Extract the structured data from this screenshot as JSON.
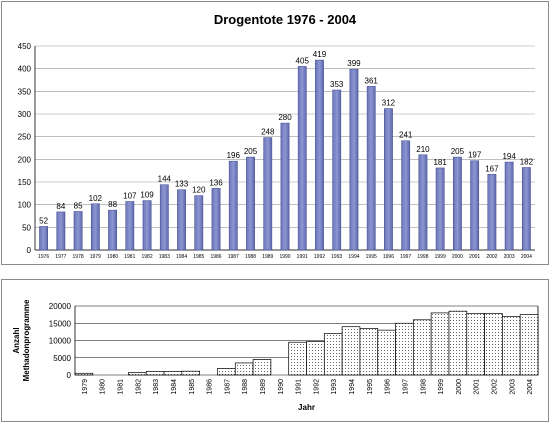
{
  "chart_data": [
    {
      "type": "bar",
      "title": "Drogentote 1976 - 2004",
      "xlabel": "",
      "ylabel": "",
      "ylim": [
        0,
        450
      ],
      "yticks": [
        0,
        50,
        100,
        150,
        200,
        250,
        300,
        350,
        400,
        450
      ],
      "grid": true,
      "bar_color": "#8c96d2",
      "categories": [
        "1976",
        "1977",
        "1978",
        "1979",
        "1980",
        "1981",
        "1982",
        "1983",
        "1984",
        "1985",
        "1986",
        "1987",
        "1988",
        "1989",
        "1990",
        "1991",
        "1992",
        "1993",
        "1994",
        "1995",
        "1996",
        "1997",
        "1998",
        "1999",
        "2000",
        "2001",
        "2002",
        "2003",
        "2004"
      ],
      "values": [
        52,
        84,
        85,
        102,
        88,
        107,
        109,
        144,
        133,
        120,
        136,
        196,
        205,
        248,
        280,
        405,
        419,
        353,
        399,
        361,
        312,
        241,
        210,
        181,
        205,
        197,
        167,
        194,
        182
      ]
    },
    {
      "type": "bar",
      "title": "",
      "xlabel": "Jahr",
      "ylabel": "Anzahl Methadonprogramme",
      "ylabel_lines": [
        "Anzahl",
        "Methadonprogramme"
      ],
      "ylim": [
        0,
        20000
      ],
      "yticks": [
        0,
        5000,
        10000,
        15000,
        20000
      ],
      "grid": true,
      "bar_fill": "dotted",
      "categories": [
        "1979",
        "1980",
        "1981",
        "1982",
        "1983",
        "1984",
        "1985",
        "1986",
        "1987",
        "1988",
        "1989",
        "1990",
        "1991",
        "1992",
        "1993",
        "1994",
        "1995",
        "1996",
        "1997",
        "1998",
        "1999",
        "2000",
        "2001",
        "2002",
        "2003",
        "2004"
      ],
      "values": [
        500,
        0,
        0,
        700,
        1000,
        1000,
        1100,
        0,
        1900,
        3500,
        4500,
        0,
        9500,
        9700,
        12000,
        14000,
        13500,
        13000,
        15000,
        16000,
        18000,
        18500,
        17800,
        17800,
        17000,
        17500
      ]
    }
  ]
}
